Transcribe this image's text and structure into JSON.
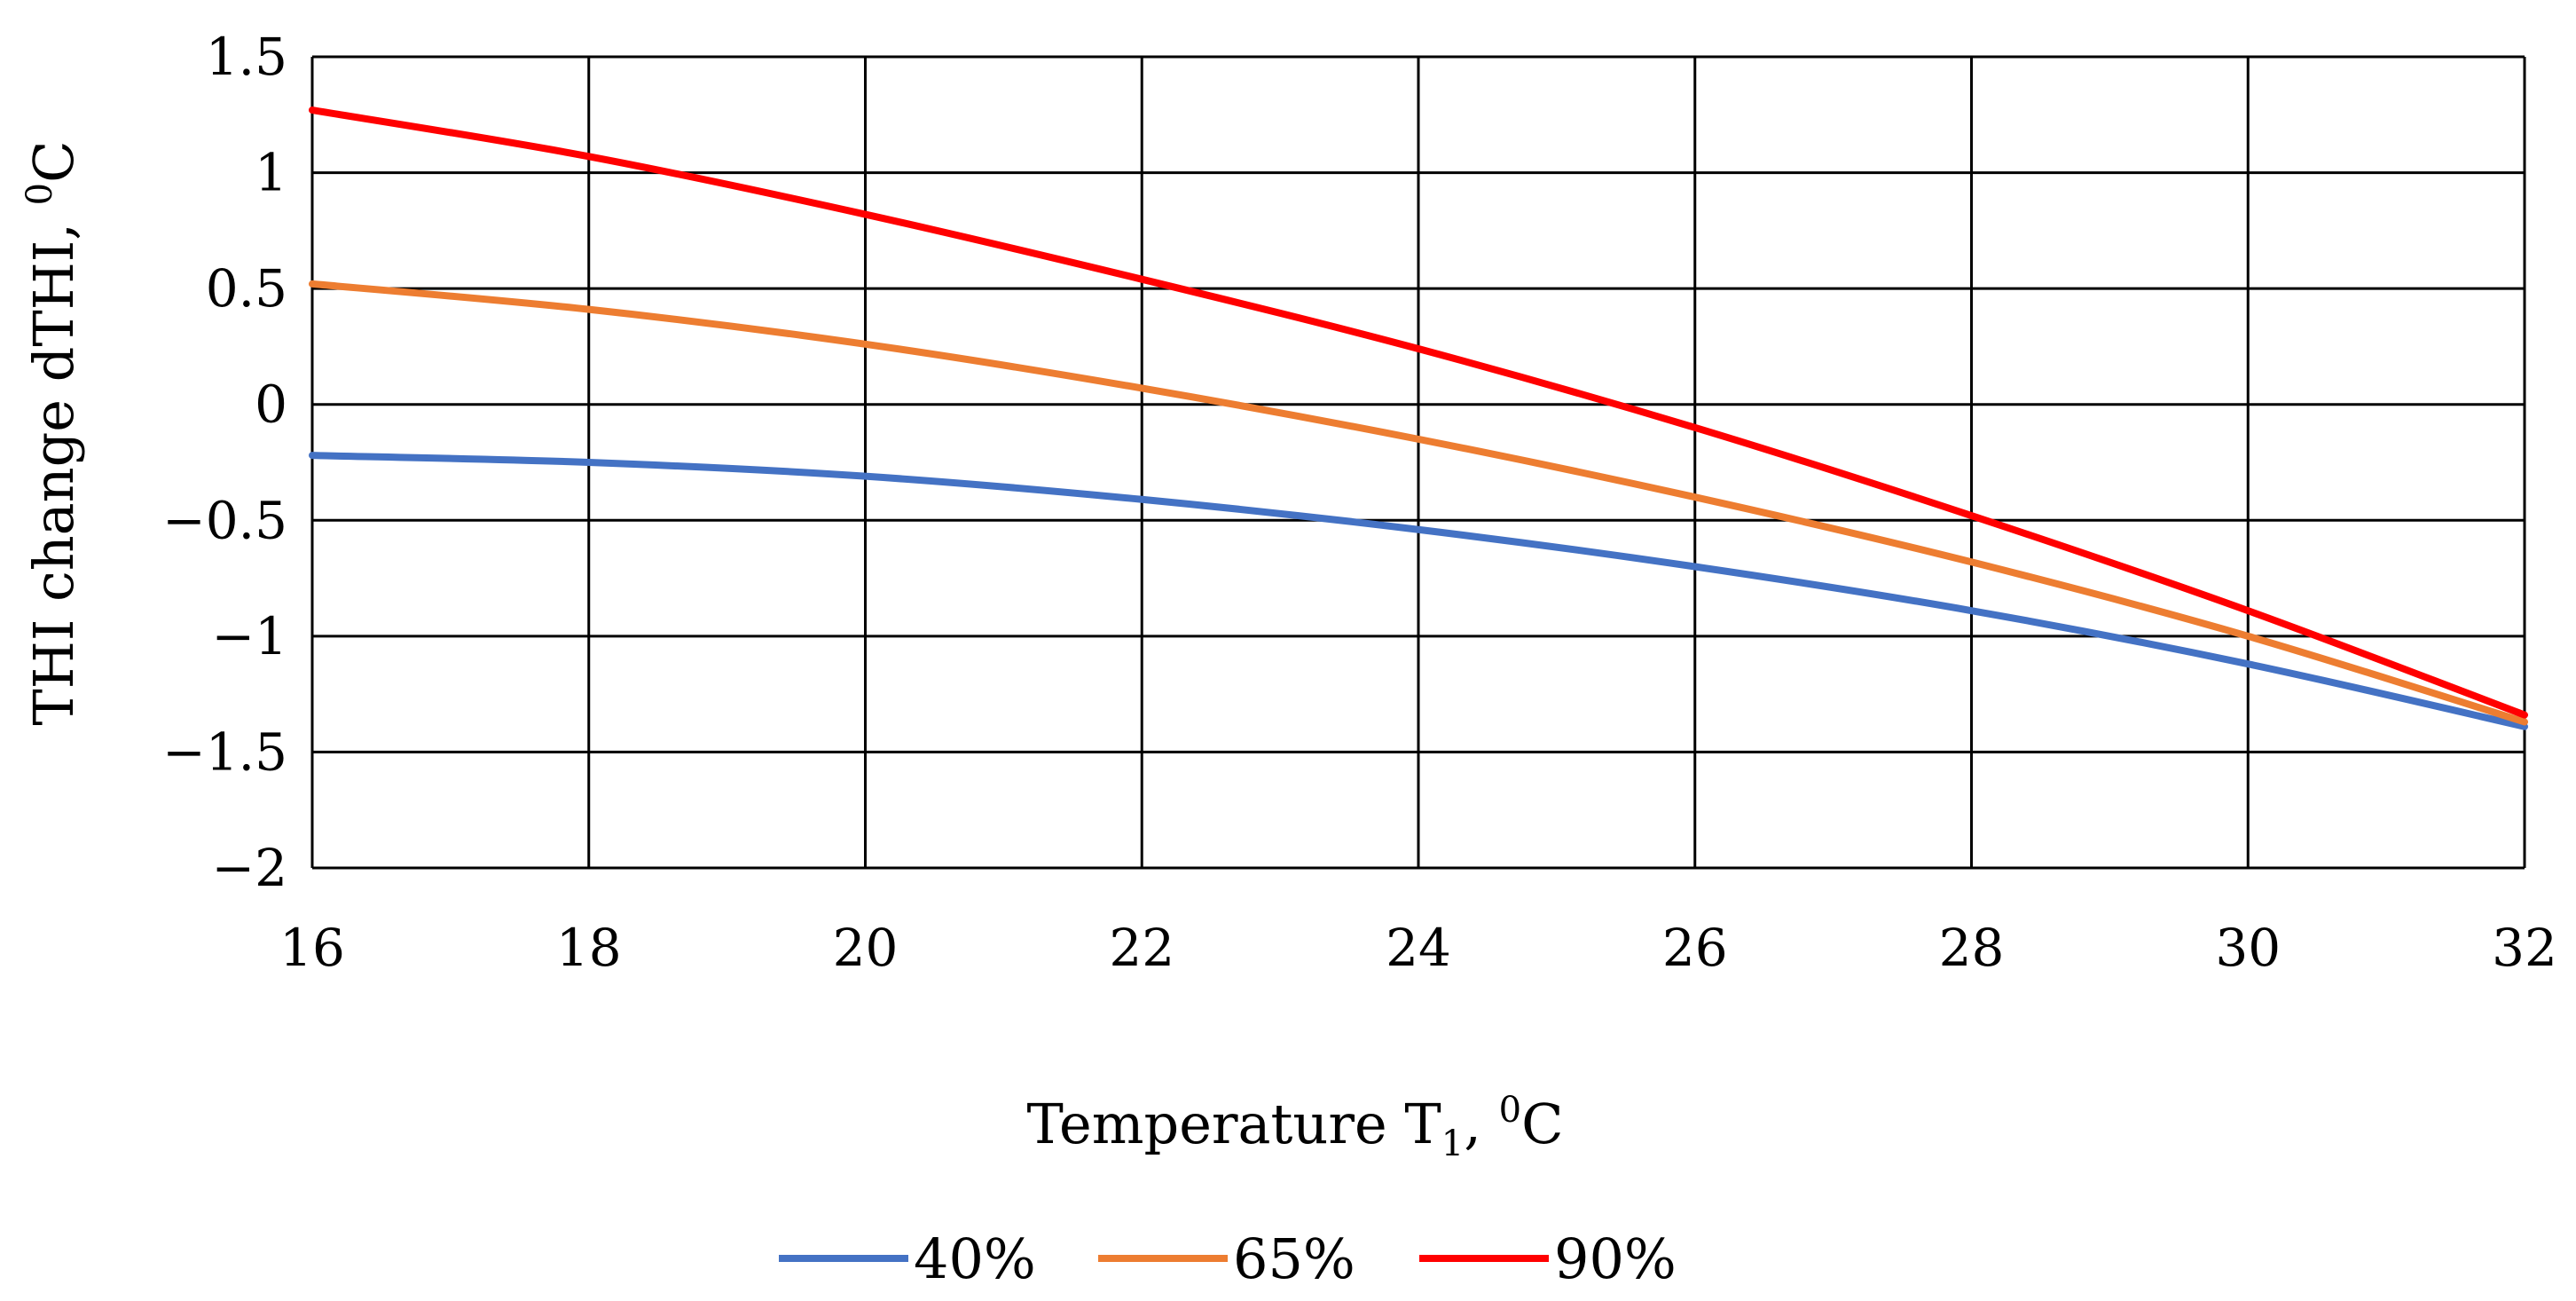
{
  "chart_data": {
    "type": "line",
    "title": "",
    "xlabel": {
      "main": "Temperature T",
      "subscript": "1",
      "separator": ", ",
      "superscript": "0",
      "unit": "C"
    },
    "ylabel": {
      "main": "THI change dTHI, ",
      "superscript": "0",
      "unit": "C"
    },
    "xlim": [
      16,
      32
    ],
    "ylim": [
      -2,
      1.5
    ],
    "x_ticks": [
      16,
      18,
      20,
      22,
      24,
      26,
      28,
      30,
      32
    ],
    "x_tick_labels": [
      "16",
      "18",
      "20",
      "22",
      "24",
      "26",
      "28",
      "30",
      "32"
    ],
    "y_ticks": [
      1.5,
      1,
      0.5,
      0,
      -0.5,
      -1,
      -1.5,
      -2
    ],
    "y_tick_labels": [
      "1.5",
      "1",
      "0.5",
      "0",
      "−0.5",
      "−1",
      "−1.5",
      "−2"
    ],
    "grid": true,
    "legend_position": "bottom",
    "x": [
      16,
      18,
      20,
      22,
      24,
      26,
      28,
      30,
      32
    ],
    "series": [
      {
        "name": "40%",
        "color": "#4472c4",
        "values": [
          -0.22,
          -0.25,
          -0.31,
          -0.41,
          -0.54,
          -0.7,
          -0.89,
          -1.12,
          -1.39
        ]
      },
      {
        "name": "65%",
        "color": "#ed7d31",
        "values": [
          0.52,
          0.41,
          0.26,
          0.07,
          -0.15,
          -0.4,
          -0.68,
          -1.0,
          -1.37
        ]
      },
      {
        "name": "90%",
        "color": "#ff0000",
        "values": [
          1.27,
          1.07,
          0.82,
          0.54,
          0.24,
          -0.1,
          -0.48,
          -0.89,
          -1.34
        ]
      }
    ]
  }
}
